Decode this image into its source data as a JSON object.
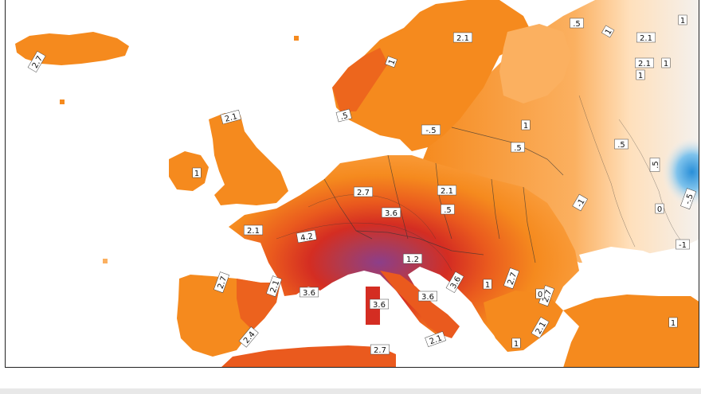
{
  "map": {
    "type": "temperature anomaly map",
    "region": "Europe",
    "palette": {
      "sea": "#ffffff",
      "strong_negative": "#2a8fd8",
      "negative": "#7fc3ec",
      "near_zero": "#f4f1ee",
      "slight_positive": "#ffd9a8",
      "positive": "#fba244",
      "moderate": "#f58a1e",
      "high": "#ea5a1e",
      "very_high": "#d42d22",
      "extreme": "#8c3e8a"
    },
    "contour_labels": [
      "2.7",
      "2.1",
      "1",
      ".5",
      "1",
      "2.1",
      "1",
      "2.1",
      "1",
      "1",
      "1",
      ".5",
      ".5",
      ".5",
      "0",
      "-.5",
      "-1",
      "-1",
      ".5",
      "-.5",
      "2.1",
      "1",
      "2.7",
      "2.1",
      ".5",
      "2.1",
      "4.2",
      "3.6",
      "1.2",
      "2.1",
      "3.6",
      "3.6",
      "3.6",
      "3.6",
      "2.7",
      "2.7",
      "2.4",
      "2.1",
      "1",
      "2.7",
      "2.1",
      "1",
      "2.7",
      "0",
      "1"
    ]
  }
}
